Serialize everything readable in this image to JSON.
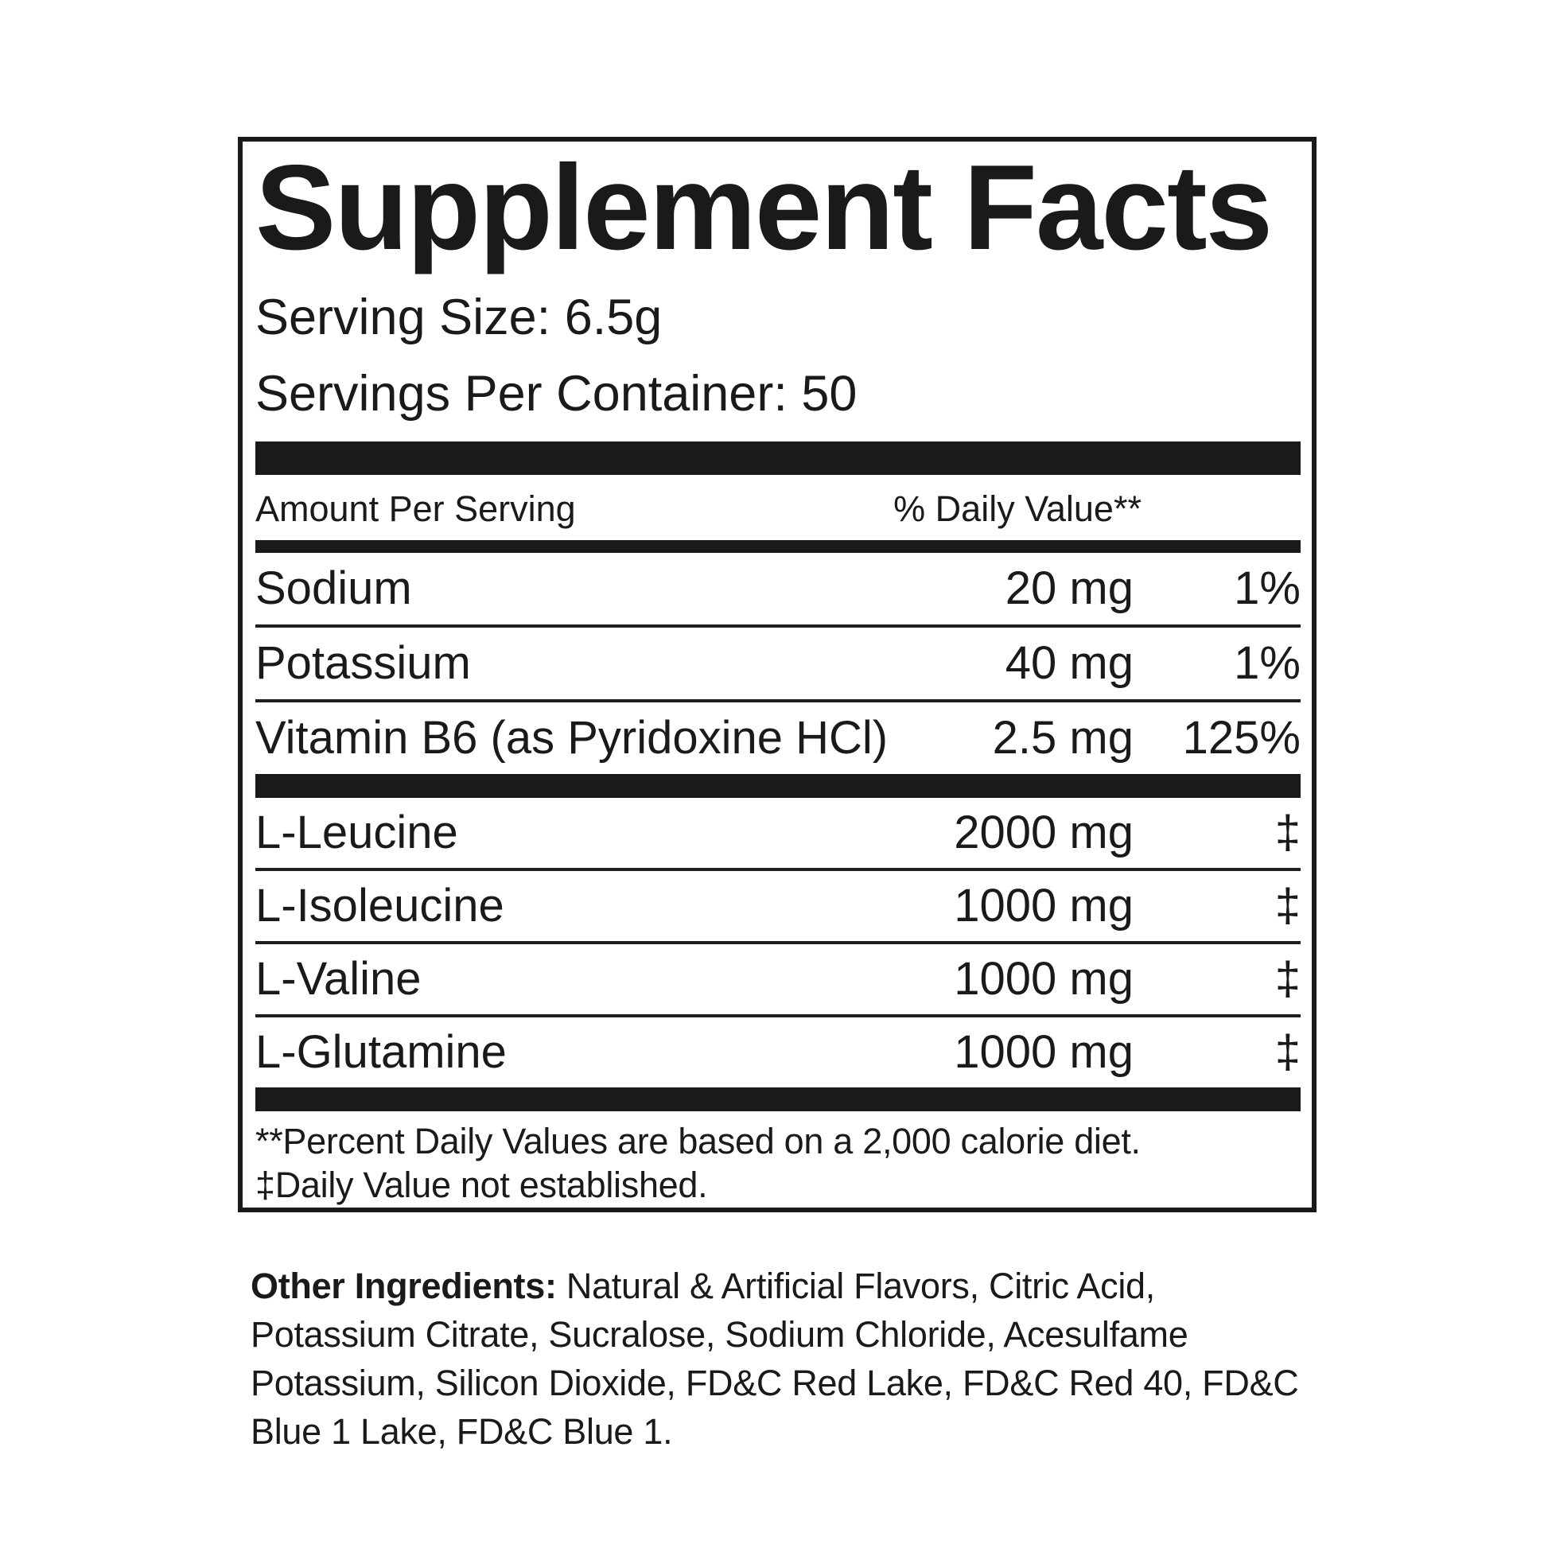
{
  "panel": {
    "title": "Supplement Facts",
    "serving_size": {
      "label": "Serving Size:",
      "value": "6.5g"
    },
    "servings_per_container": {
      "label": "Servings Per Container:",
      "value": "50"
    },
    "columns": {
      "amount": "Amount Per Serving",
      "daily_value": "% Daily Value**"
    },
    "nutrients": [
      {
        "name": "Sodium",
        "amount": "20 mg",
        "dv": "1%"
      },
      {
        "name": "Potassium",
        "amount": "40 mg",
        "dv": "1%"
      },
      {
        "name": "Vitamin B6 (as Pyridoxine HCl)",
        "amount": "2.5 mg",
        "dv": "125%"
      }
    ],
    "aminos": [
      {
        "name": "L-Leucine",
        "amount": "2000 mg",
        "dv": "‡"
      },
      {
        "name": "L-Isoleucine",
        "amount": "1000 mg",
        "dv": "‡"
      },
      {
        "name": "L-Valine",
        "amount": "1000 mg",
        "dv": "‡"
      },
      {
        "name": "L-Glutamine",
        "amount": "1000 mg",
        "dv": "‡"
      }
    ],
    "footnotes": {
      "daily_value": "**Percent Daily Values are based on a 2,000 calorie diet.",
      "not_established": "‡Daily Value not established."
    }
  },
  "other_ingredients": {
    "label": "Other Ingredients:",
    "text": "Natural & Artificial Flavors, Citric Acid, Potassium Citrate, Sucralose, Sodium Chloride, Acesulfame Potassium, Silicon Dioxide, FD&C Red Lake, FD&C Red 40, FD&C Blue 1 Lake, FD&C Blue 1."
  },
  "colors": {
    "ink": "#1a1a1a",
    "background": "#ffffff"
  }
}
